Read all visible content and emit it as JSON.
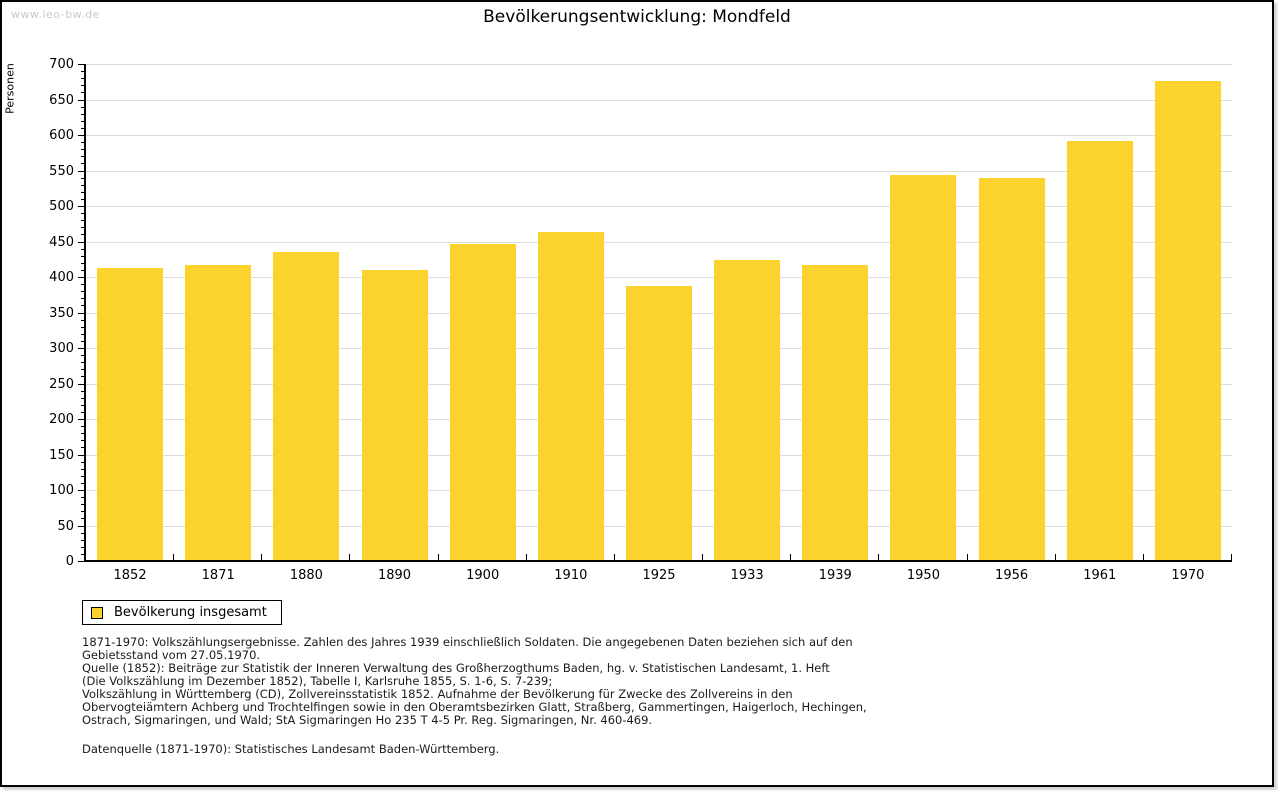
{
  "page": {
    "watermark": "www.leo-bw.de"
  },
  "chart_data": {
    "type": "bar",
    "title": "Bevölkerungsentwicklung: Mondfeld",
    "ylabel": "Personen",
    "xlabel": "",
    "categories": [
      "1852",
      "1871",
      "1880",
      "1890",
      "1900",
      "1910",
      "1925",
      "1933",
      "1939",
      "1950",
      "1956",
      "1961",
      "1970"
    ],
    "values": [
      413,
      417,
      435,
      410,
      447,
      463,
      388,
      424,
      417,
      544,
      540,
      591,
      676
    ],
    "ylim": [
      0,
      700
    ],
    "ytick_step": 50,
    "yminor_step": 10,
    "grid": true,
    "legend_position": "bottom-left",
    "legend": [
      {
        "label": "Bevölkerung insgesamt"
      }
    ],
    "colors": {
      "bar": "#fcd32c",
      "grid": "#dddddd",
      "axis": "#000000"
    }
  },
  "footer": {
    "lines": [
      "1871-1970: Volkszählungsergebnisse. Zahlen des Jahres 1939 einschließlich Soldaten. Die angegebenen Daten beziehen sich auf den",
      "Gebietsstand vom 27.05.1970.",
      "Quelle (1852): Beiträge zur Statistik der Inneren Verwaltung des Großherzogthums Baden, hg. v. Statistischen Landesamt, 1. Heft",
      "(Die Volkszählung im Dezember 1852), Tabelle I, Karlsruhe 1855, S. 1-6, S. 7-239;",
      "Volkszählung in Württemberg (CD), Zollvereinsstatistik 1852. Aufnahme der Bevölkerung für Zwecke des Zollvereins in den",
      "Obervogteiämtern Achberg und Trochtelfingen sowie in den Oberamtsbezirken Glatt, Straßberg, Gammertingen, Haigerloch, Hechingen,",
      "Ostrach, Sigmaringen, und Wald; StA Sigmaringen Ho 235 T 4-5 Pr. Reg. Sigmaringen, Nr. 460-469."
    ],
    "datasource": "Datenquelle (1871-1970): Statistisches Landesamt Baden-Württemberg."
  }
}
